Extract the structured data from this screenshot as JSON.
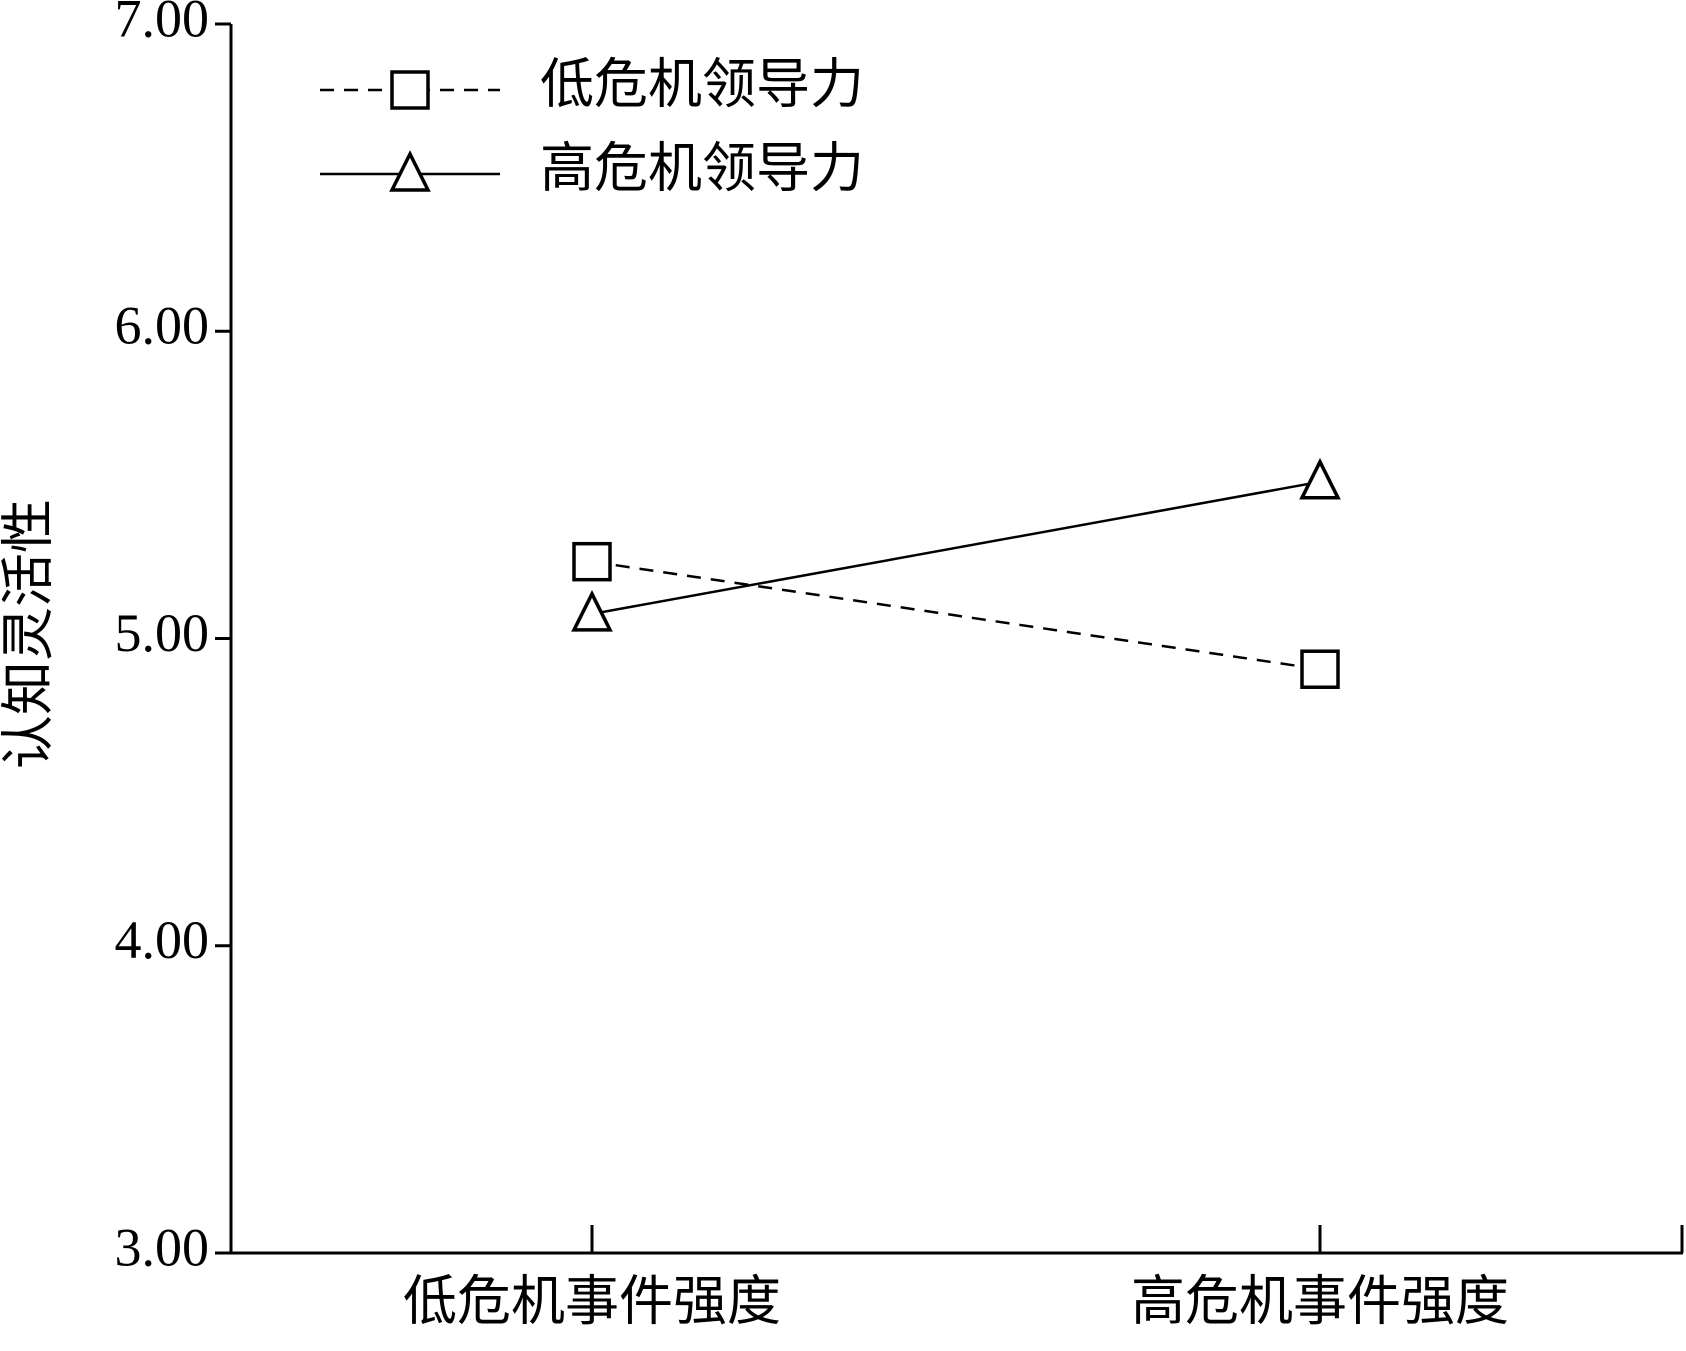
{
  "chart_data": {
    "type": "line",
    "y_label": "认知灵活性",
    "categories": [
      "低危机事件强度",
      "高危机事件强度"
    ],
    "series": [
      {
        "name": "低危机领导力",
        "color": "#000000",
        "line_style": "dashed",
        "marker": "square",
        "values": [
          5.25,
          4.9
        ]
      },
      {
        "name": "高危机领导力",
        "color": "#000000",
        "line_style": "solid",
        "marker": "triangle",
        "values": [
          5.08,
          5.51
        ]
      }
    ],
    "ylim": [
      3,
      7
    ],
    "yticks": [
      {
        "value": 3,
        "label": "3.00"
      },
      {
        "value": 4,
        "label": "4.00"
      },
      {
        "value": 5,
        "label": "5.00"
      },
      {
        "value": 6,
        "label": "6.00"
      },
      {
        "value": 7,
        "label": "7.00"
      }
    ],
    "grid": false,
    "legend_position": "upper left"
  }
}
